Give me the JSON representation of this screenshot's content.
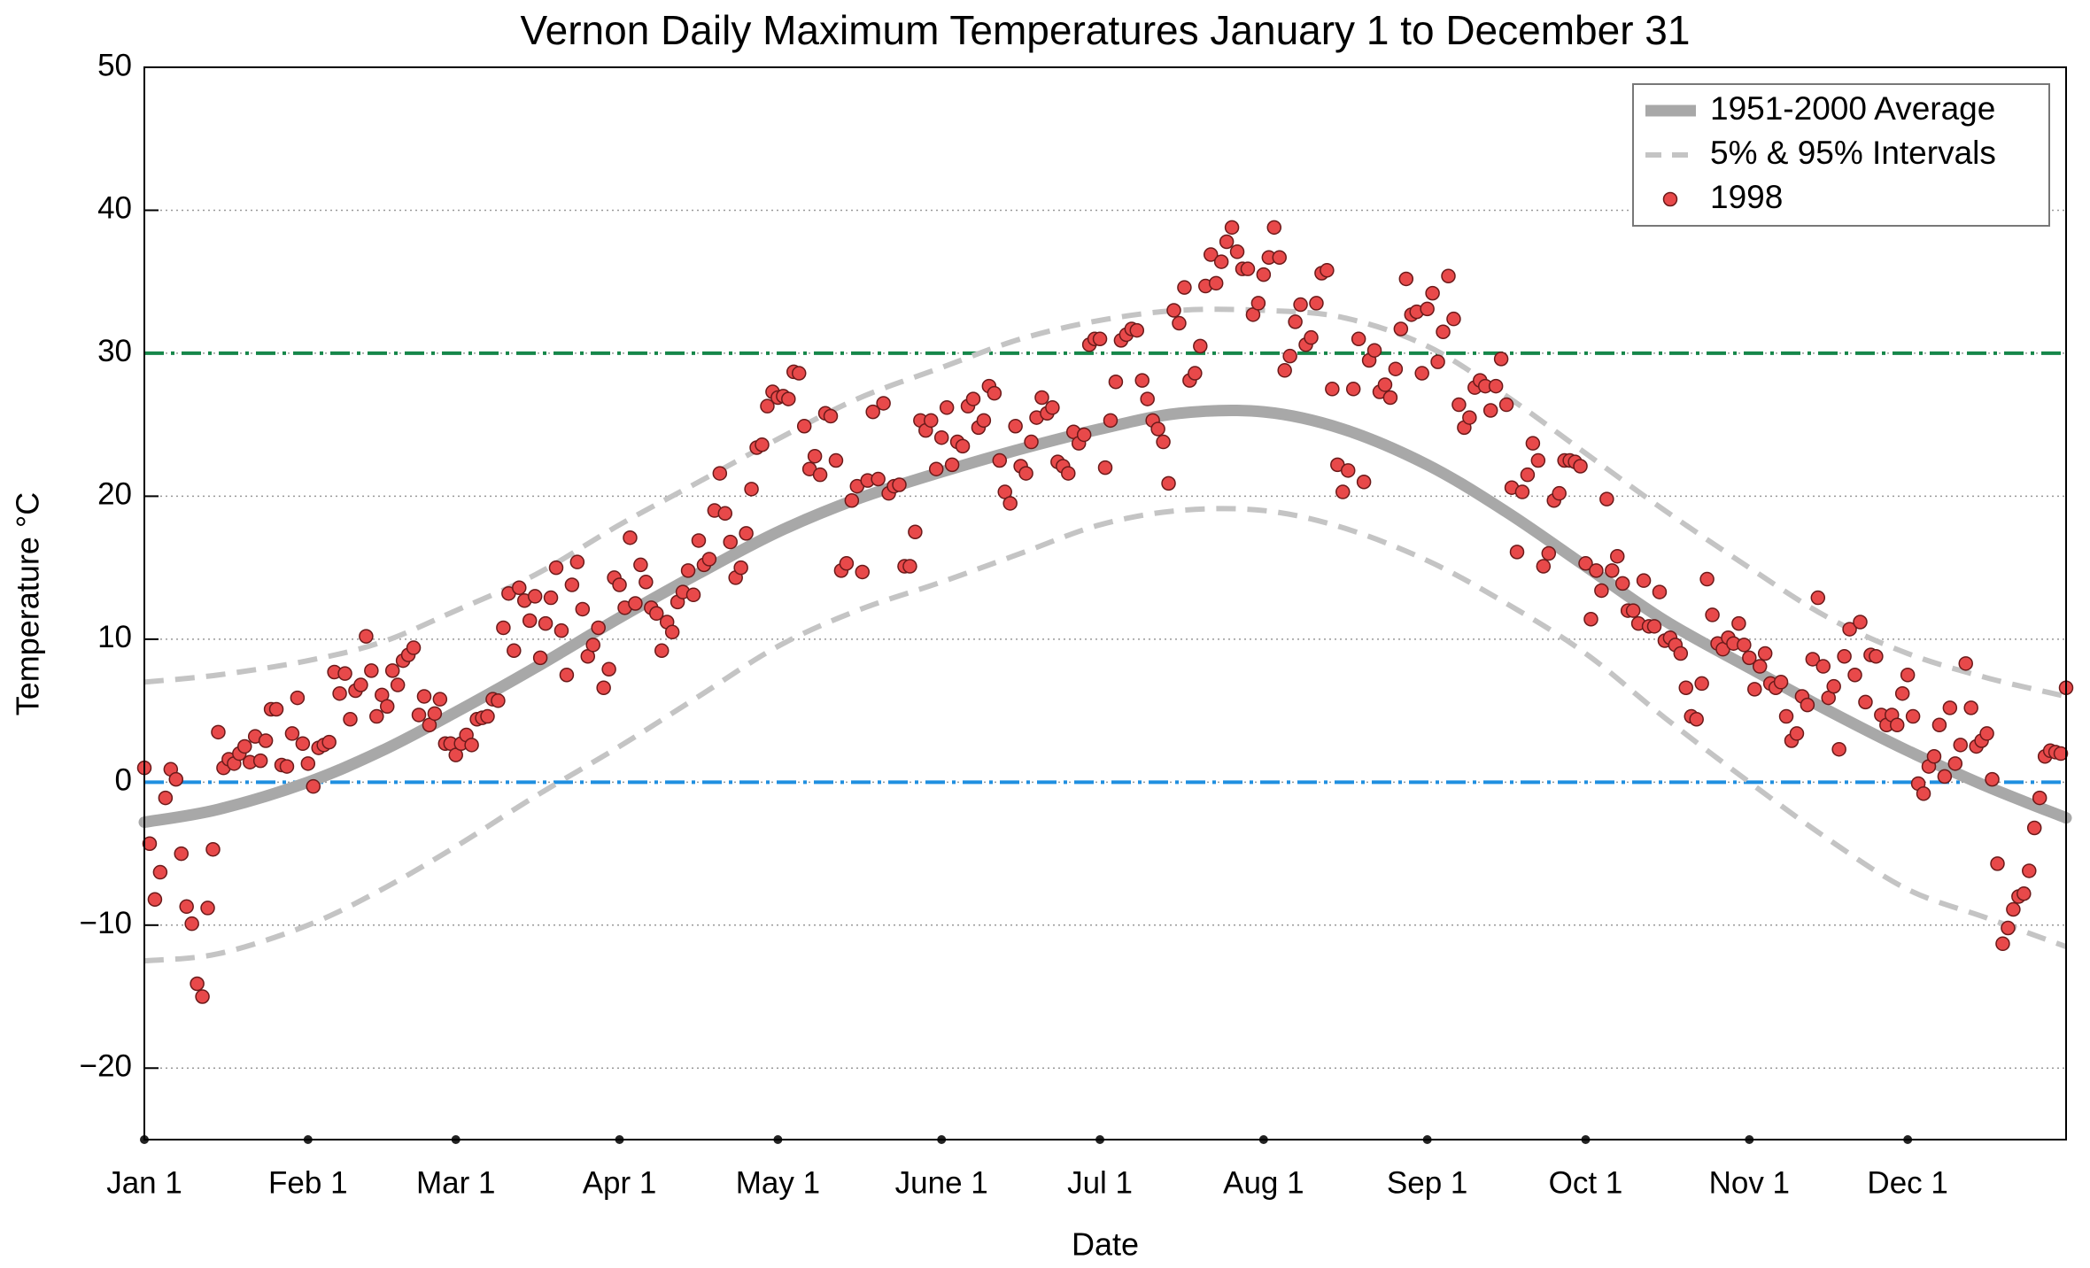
{
  "chart_data": {
    "type": "line",
    "title": "Vernon Daily Maximum Temperatures January 1 to December 31",
    "x_label": "Date",
    "y_label": "Temperature °C",
    "xlim": [
      1,
      365
    ],
    "ylim": [
      -25,
      50
    ],
    "xticks": [
      {
        "value": 1,
        "label": "Jan 1"
      },
      {
        "value": 32,
        "label": "Feb 1"
      },
      {
        "value": 60,
        "label": "Mar 1"
      },
      {
        "value": 91,
        "label": "Apr 1"
      },
      {
        "value": 121,
        "label": "May 1"
      },
      {
        "value": 152,
        "label": "June 1"
      },
      {
        "value": 182,
        "label": "Jul 1"
      },
      {
        "value": 213,
        "label": "Aug 1"
      },
      {
        "value": 244,
        "label": "Sep 1"
      },
      {
        "value": 274,
        "label": "Oct 1"
      },
      {
        "value": 305,
        "label": "Nov 1"
      },
      {
        "value": 335,
        "label": "Dec 1"
      }
    ],
    "yticks": [
      {
        "value": -20,
        "label": "−20"
      },
      {
        "value": -10,
        "label": "−10"
      },
      0,
      10,
      20,
      30,
      40,
      50
    ],
    "grid": true,
    "legend": "upper right",
    "hlines": [
      {
        "value": 30,
        "color": "#16874a"
      },
      {
        "value": 0,
        "color": "#1f8fe0"
      }
    ],
    "series": [
      {
        "name": "1951-2000 Average",
        "style": "solid",
        "color": "#a8a8a8",
        "x": [
          1,
          15,
          32,
          46,
          60,
          75,
          91,
          106,
          121,
          136,
          152,
          167,
          182,
          197,
          213,
          228,
          244,
          259,
          274,
          289,
          305,
          320,
          335,
          350,
          365
        ],
        "values": [
          -2.8,
          -1.9,
          0,
          2.2,
          4.9,
          8.0,
          11.5,
          14.6,
          17.5,
          19.8,
          21.7,
          23.3,
          24.7,
          25.8,
          25.9,
          24.7,
          22.2,
          18.9,
          15.1,
          11.3,
          8.0,
          5.0,
          2.2,
          -0.3,
          -2.5
        ]
      },
      {
        "name": "5% & 95% Intervals",
        "style": "dashed",
        "color": "#c4c4c4",
        "x": [
          1,
          15,
          32,
          46,
          60,
          75,
          91,
          106,
          121,
          136,
          152,
          167,
          182,
          197,
          213,
          228,
          244,
          259,
          274,
          289,
          305,
          320,
          335,
          350,
          365
        ],
        "lower": [
          -12.5,
          -12,
          -10,
          -7.5,
          -4.5,
          -1,
          2.5,
          6,
          9.5,
          12,
          14,
          16,
          18,
          19,
          19,
          17.8,
          15.5,
          12.5,
          9,
          4.5,
          0,
          -4,
          -7.5,
          -9.5,
          -11.5
        ],
        "upper": [
          7,
          7.5,
          8.5,
          9.8,
          12,
          14.5,
          18,
          21,
          24,
          26.8,
          29,
          31,
          32.3,
          33,
          33,
          32.5,
          30.5,
          27,
          23,
          19,
          15,
          11.5,
          9,
          7.3,
          6
        ]
      },
      {
        "name": "1998",
        "style": "markers",
        "color": "#e8494a",
        "edge": "#6b1a1a",
        "x": [
          1,
          2,
          3,
          4,
          5,
          6,
          7,
          8,
          9,
          10,
          11,
          12,
          13,
          14,
          15,
          16,
          17,
          18,
          19,
          20,
          21,
          22,
          23,
          24,
          25,
          26,
          27,
          28,
          29,
          30,
          31,
          32,
          33,
          34,
          35,
          36,
          37,
          38,
          39,
          40,
          41,
          42,
          43,
          44,
          45,
          46,
          47,
          48,
          49,
          50,
          51,
          52,
          53,
          54,
          55,
          56,
          57,
          58,
          59,
          60,
          61,
          62,
          63,
          64,
          65,
          66,
          67,
          68,
          69,
          70,
          71,
          72,
          73,
          74,
          75,
          76,
          77,
          78,
          79,
          80,
          81,
          82,
          83,
          84,
          85,
          86,
          87,
          88,
          89,
          90,
          91,
          92,
          93,
          94,
          95,
          96,
          97,
          98,
          99,
          100,
          101,
          102,
          103,
          104,
          105,
          106,
          107,
          108,
          109,
          110,
          111,
          112,
          113,
          114,
          115,
          116,
          117,
          118,
          119,
          120,
          121,
          122,
          123,
          124,
          125,
          126,
          127,
          128,
          129,
          130,
          131,
          132,
          133,
          134,
          135,
          136,
          137,
          138,
          139,
          140,
          141,
          142,
          143,
          144,
          145,
          146,
          147,
          148,
          149,
          150,
          151,
          152,
          153,
          154,
          155,
          156,
          157,
          158,
          159,
          160,
          161,
          162,
          163,
          164,
          165,
          166,
          167,
          168,
          169,
          170,
          171,
          172,
          173,
          174,
          175,
          176,
          177,
          178,
          179,
          180,
          181,
          182,
          183,
          184,
          185,
          186,
          187,
          188,
          189,
          190,
          191,
          192,
          193,
          194,
          195,
          196,
          197,
          198,
          199,
          200,
          201,
          202,
          203,
          204,
          205,
          206,
          207,
          208,
          209,
          210,
          211,
          212,
          213,
          214,
          215,
          216,
          217,
          218,
          219,
          220,
          221,
          222,
          223,
          224,
          225,
          226,
          227,
          228,
          229,
          230,
          231,
          232,
          233,
          234,
          235,
          236,
          237,
          238,
          239,
          240,
          241,
          242,
          243,
          244,
          245,
          246,
          247,
          248,
          249,
          250,
          251,
          252,
          253,
          254,
          255,
          256,
          257,
          258,
          259,
          260,
          261,
          262,
          263,
          264,
          265,
          266,
          267,
          268,
          269,
          270,
          271,
          272,
          273,
          274,
          275,
          276,
          277,
          278,
          279,
          280,
          281,
          282,
          283,
          284,
          285,
          286,
          287,
          288,
          289,
          290,
          291,
          292,
          293,
          294,
          295,
          296,
          297,
          298,
          299,
          300,
          301,
          302,
          303,
          304,
          305,
          306,
          307,
          308,
          309,
          310,
          311,
          312,
          313,
          314,
          315,
          316,
          317,
          318,
          319,
          320,
          321,
          322,
          323,
          324,
          325,
          326,
          327,
          328,
          329,
          330,
          331,
          332,
          333,
          334,
          335,
          336,
          337,
          338,
          339,
          340,
          341,
          342,
          343,
          344,
          345,
          346,
          347,
          348,
          349,
          350,
          351,
          352,
          353,
          354,
          355,
          356,
          357,
          358,
          359,
          360,
          361,
          362,
          363,
          364,
          365
        ],
        "values": [
          1.0,
          -4.3,
          -8.2,
          -6.3,
          -1.1,
          0.9,
          0.2,
          -5.0,
          -8.7,
          -9.9,
          -14.1,
          -15.0,
          -8.8,
          -4.7,
          3.5,
          1.0,
          1.6,
          1.3,
          2.0,
          2.5,
          1.4,
          3.2,
          1.5,
          2.9,
          5.1,
          5.1,
          1.2,
          1.1,
          3.4,
          5.9,
          2.7,
          1.3,
          -0.3,
          2.4,
          2.6,
          2.8,
          7.7,
          6.2,
          7.6,
          4.4,
          6.4,
          6.8,
          10.2,
          7.8,
          4.6,
          6.1,
          5.3,
          7.8,
          6.8,
          8.5,
          8.9,
          9.4,
          4.7,
          6.0,
          4.0,
          4.8,
          5.8,
          2.7,
          2.7,
          1.9,
          2.7,
          3.3,
          2.6,
          4.4,
          4.5,
          4.6,
          5.8,
          5.7,
          10.8,
          13.2,
          9.2,
          13.6,
          12.7,
          11.3,
          13.0,
          8.7,
          11.1,
          12.9,
          15.0,
          10.6,
          7.5,
          13.8,
          15.4,
          12.1,
          8.8,
          9.6,
          10.8,
          6.6,
          7.9,
          14.3,
          13.8,
          12.2,
          17.1,
          12.5,
          15.2,
          14.0,
          12.2,
          11.8,
          9.2,
          11.2,
          10.5,
          12.6,
          13.3,
          14.8,
          13.1,
          16.9,
          15.2,
          15.6,
          19.0,
          21.6,
          18.8,
          16.8,
          14.3,
          15.0,
          17.4,
          20.5,
          23.4,
          23.6,
          26.3,
          27.3,
          26.9,
          27.0,
          26.8,
          28.7,
          28.6,
          24.9,
          21.9,
          22.8,
          21.5,
          25.8,
          25.6,
          22.5,
          14.8,
          15.3,
          19.7,
          20.7,
          14.7,
          21.1,
          25.9,
          21.2,
          26.5,
          20.2,
          20.7,
          20.8,
          15.1,
          15.1,
          17.5,
          25.3,
          24.6,
          25.3,
          21.9,
          24.1,
          26.2,
          22.2,
          23.8,
          23.5,
          26.3,
          26.8,
          24.8,
          25.3,
          27.7,
          27.2,
          22.5,
          20.3,
          19.5,
          24.9,
          22.1,
          21.6,
          23.8,
          25.5,
          26.9,
          25.8,
          26.2,
          22.4,
          22.1,
          21.6,
          24.5,
          23.7,
          24.3,
          30.6,
          31.0,
          31.0,
          22.0,
          25.3,
          28.0,
          30.9,
          31.3,
          31.7,
          31.6,
          28.1,
          26.8,
          25.3,
          24.7,
          23.8,
          20.9,
          33.0,
          32.1,
          34.6,
          28.1,
          28.6,
          30.5,
          34.7,
          36.9,
          34.9,
          36.4,
          37.8,
          38.8,
          37.1,
          35.9,
          35.9,
          32.7,
          33.5,
          35.5,
          36.7,
          38.8,
          36.7,
          28.8,
          29.8,
          32.2,
          33.4,
          30.6,
          31.1,
          33.5,
          35.6,
          35.8,
          27.5,
          22.2,
          20.3,
          21.8,
          27.5,
          31.0,
          21.0,
          29.5,
          30.2,
          27.3,
          27.8,
          26.9,
          28.9,
          31.7,
          35.2,
          32.7,
          32.9,
          28.6,
          33.1,
          34.2,
          29.4,
          31.5,
          35.4,
          32.4,
          26.4,
          24.8,
          25.5,
          27.6,
          28.1,
          27.7,
          26.0,
          27.7,
          29.6,
          26.4,
          20.6,
          16.1,
          20.3,
          21.5,
          23.7,
          22.5,
          15.1,
          16.0,
          19.7,
          20.2,
          22.5,
          22.5,
          22.4,
          22.1,
          15.3,
          11.4,
          14.8,
          13.4,
          19.8,
          14.8,
          15.8,
          13.9,
          12.0,
          12.0,
          11.1,
          14.1,
          10.9,
          10.9,
          13.3,
          9.9,
          10.1,
          9.6,
          9.0,
          6.6,
          4.6,
          4.4,
          6.9,
          14.2,
          11.7,
          9.7,
          9.3,
          10.1,
          9.7,
          11.1,
          9.6,
          8.7,
          6.5,
          8.1,
          9.0,
          6.9,
          6.6,
          7.0,
          4.6,
          2.9,
          3.4,
          6.0,
          5.4,
          8.6,
          12.9,
          8.1,
          5.9,
          6.7,
          2.3,
          8.8,
          10.7,
          7.5,
          11.2,
          5.6,
          8.9,
          8.8,
          4.7,
          4.0,
          4.7,
          4.0,
          6.2,
          7.5,
          4.6,
          -0.1,
          -0.8,
          1.1,
          1.8,
          4.0,
          0.4,
          5.2,
          1.3,
          2.6,
          8.3,
          5.2,
          2.5,
          2.9,
          3.4,
          0.2,
          -5.7,
          -11.3,
          -10.2,
          -8.9,
          -8.0,
          -7.8,
          -6.2,
          -3.2,
          -1.1,
          1.8,
          2.2,
          2.1,
          2.0,
          6.6
        ]
      }
    ]
  }
}
